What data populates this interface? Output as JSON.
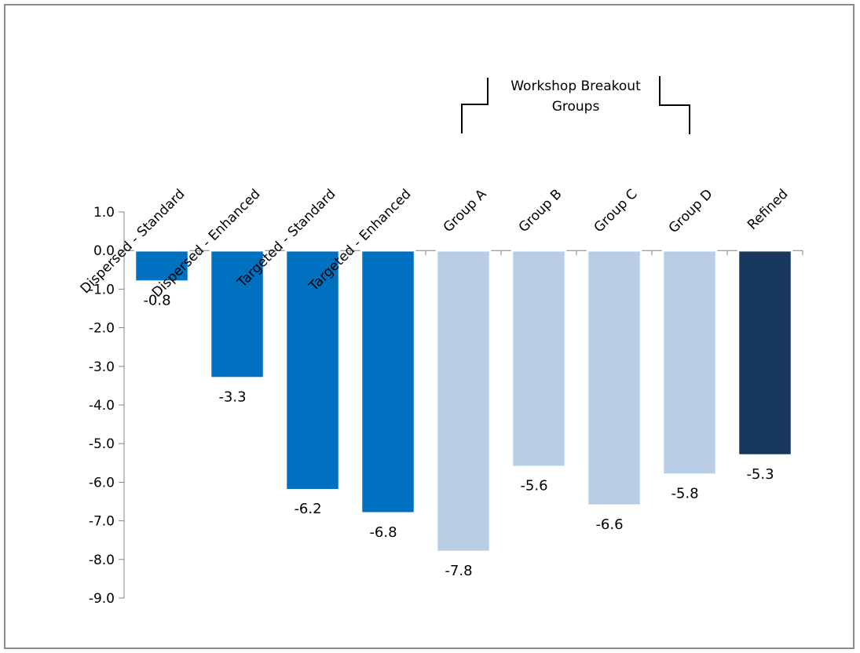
{
  "chart_data": {
    "type": "bar",
    "categories": [
      "Dispersed - Standard",
      "Dispersed - Enhanced",
      "Targeted - Standard",
      "Targeted - Enhanced",
      "Group A",
      "Group B",
      "Group C",
      "Group D",
      "Refined"
    ],
    "values": [
      -0.8,
      -3.3,
      -6.2,
      -6.8,
      -7.8,
      -5.6,
      -6.6,
      -5.8,
      -5.3
    ],
    "value_labels": [
      "-0.8",
      "-3.3",
      "-6.2",
      "-6.8",
      "-7.8",
      "-5.6",
      "-6.6",
      "-5.8",
      "-5.3"
    ],
    "bar_colors": [
      "#0070c0",
      "#0070c0",
      "#0070c0",
      "#0070c0",
      "#b9cde5",
      "#b9cde5",
      "#b9cde5",
      "#b9cde5",
      "#17375e"
    ],
    "ylim": [
      -9.0,
      1.0
    ],
    "ytick_values": [
      1,
      0,
      -1,
      -2,
      -3,
      -4,
      -5,
      -6,
      -7,
      -8,
      -9
    ],
    "ytick_labels": [
      "1.0",
      "0.0",
      "-1.0",
      "-2.0",
      "-3.0",
      "-4.0",
      "-5.0",
      "-6.0",
      "-7.0",
      "-8.0",
      "-9.0"
    ],
    "grid": false,
    "legend": "none",
    "annotation": {
      "text_lines": [
        "Workshop Breakout",
        "Groups"
      ],
      "spans_categories": [
        "Group A",
        "Group D"
      ]
    },
    "title": "",
    "xlabel": "",
    "ylabel": ""
  }
}
